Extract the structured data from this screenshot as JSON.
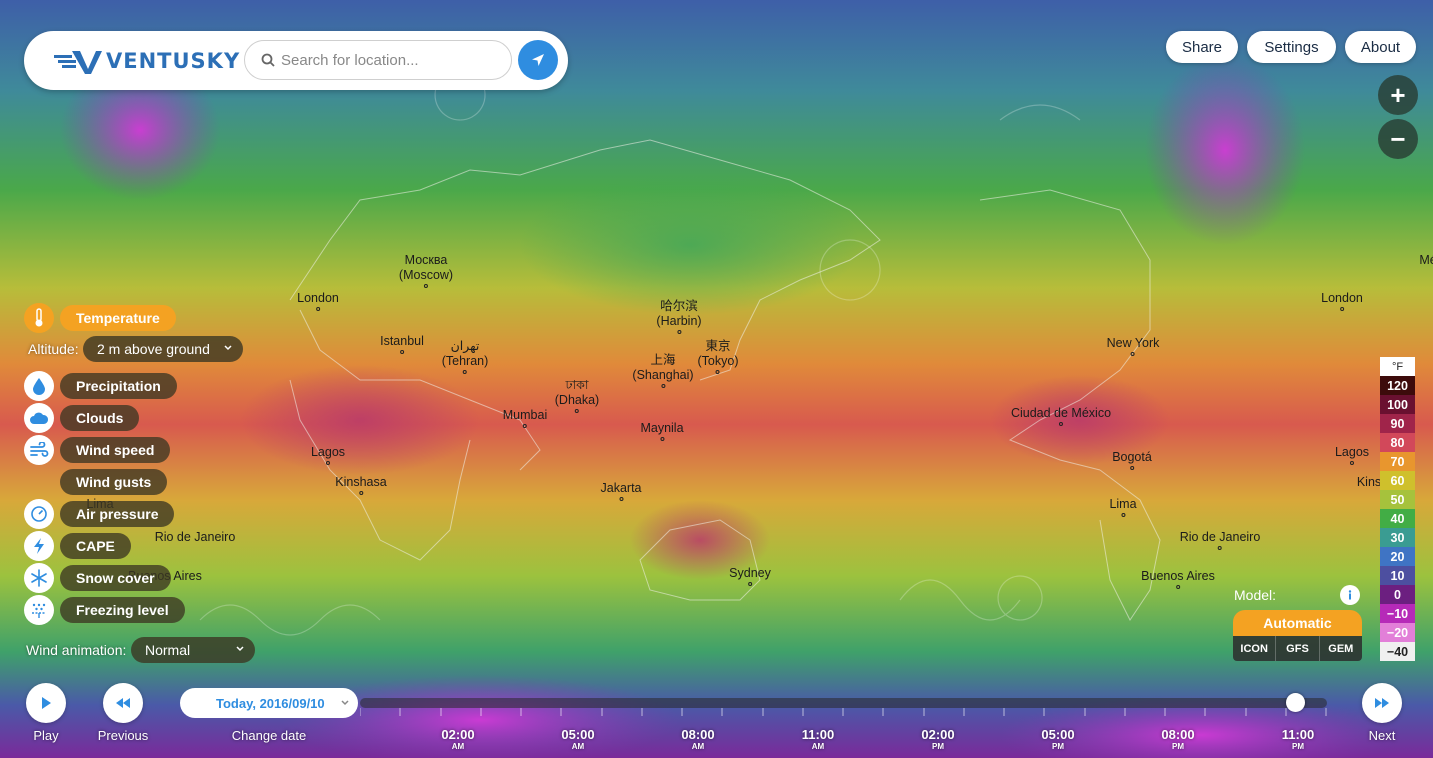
{
  "brand": {
    "name": "VENTUSKY",
    "accent": "#2f8de0",
    "logo_color": "#2c6fb6"
  },
  "search": {
    "placeholder": "Search for location..."
  },
  "top_buttons": {
    "share": "Share",
    "settings": "Settings",
    "about": "About"
  },
  "zoom": {
    "in": "+",
    "out": "−"
  },
  "cities": [
    {
      "name": "Москва",
      "sub": "(Moscow)"
    },
    {
      "name": "London",
      "sub": ""
    },
    {
      "name": "Istanbul",
      "sub": ""
    },
    {
      "name": "تهران",
      "sub": "(Tehran)"
    },
    {
      "name": "哈尔滨",
      "sub": "(Harbin)"
    },
    {
      "name": "上海",
      "sub": "(Shanghai)"
    },
    {
      "name": "東京",
      "sub": "(Tokyo)"
    },
    {
      "name": "ঢাকা",
      "sub": "(Dhaka)"
    },
    {
      "name": "Mumbai",
      "sub": ""
    },
    {
      "name": "Maynila",
      "sub": ""
    },
    {
      "name": "Lagos",
      "sub": ""
    },
    {
      "name": "Kinshasa",
      "sub": ""
    },
    {
      "name": "Jakarta",
      "sub": ""
    },
    {
      "name": "Sydney",
      "sub": ""
    },
    {
      "name": "Rio de Janeiro",
      "sub": ""
    },
    {
      "name": "Buenos Aires",
      "sub": ""
    },
    {
      "name": "Lima",
      "sub": ""
    },
    {
      "name": "Bogotá",
      "sub": ""
    },
    {
      "name": "Ciudad de México",
      "sub": ""
    },
    {
      "name": "New York",
      "sub": ""
    },
    {
      "name": "London",
      "sub": ""
    },
    {
      "name": "Lagos",
      "sub": ""
    },
    {
      "name": "Rio de Janeiro",
      "sub": ""
    },
    {
      "name": "Buenos Aires",
      "sub": ""
    },
    {
      "name": "Lima",
      "sub": ""
    },
    {
      "name": "Kins",
      "sub": ""
    },
    {
      "name": "Mé",
      "sub": ""
    }
  ],
  "layers": {
    "temperature": "Temperature",
    "altitude_label": "Altitude:",
    "altitude_value": "2 m above ground",
    "precipitation": "Precipitation",
    "clouds": "Clouds",
    "wind_speed": "Wind speed",
    "wind_gusts": "Wind gusts",
    "air_pressure": "Air pressure",
    "cape": "CAPE",
    "snow_cover": "Snow cover",
    "freezing_level": "Freezing level",
    "wind_animation_label": "Wind animation:",
    "wind_animation_value": "Normal",
    "active_color": "#f4a222"
  },
  "legend": {
    "unit": "°F",
    "entries": [
      {
        "label": "120",
        "color": "#3d0b0b"
      },
      {
        "label": "100",
        "color": "#6a1030"
      },
      {
        "label": "90",
        "color": "#a0244a"
      },
      {
        "label": "80",
        "color": "#d2485a"
      },
      {
        "label": "70",
        "color": "#e8962e"
      },
      {
        "label": "60",
        "color": "#cfc02c"
      },
      {
        "label": "50",
        "color": "#a6c23c"
      },
      {
        "label": "40",
        "color": "#42ad45"
      },
      {
        "label": "30",
        "color": "#3a9c92"
      },
      {
        "label": "20",
        "color": "#3f74c4"
      },
      {
        "label": "10",
        "color": "#4d4fa0"
      },
      {
        "label": "0",
        "color": "#6c1f80"
      },
      {
        "label": "−10",
        "color": "#b62ab8"
      },
      {
        "label": "−20",
        "color": "#e27fd8"
      },
      {
        "label": "−40",
        "color": "#f0f0f0"
      }
    ]
  },
  "model": {
    "label": "Model:",
    "selected": "Automatic",
    "options": [
      "ICON",
      "GFS",
      "GEM"
    ]
  },
  "timeline": {
    "play": "Play",
    "previous": "Previous",
    "change_date": "Change date",
    "next": "Next",
    "date": "Today, 2016/09/10",
    "times": [
      {
        "t": "02:00",
        "ap": "AM"
      },
      {
        "t": "05:00",
        "ap": "AM"
      },
      {
        "t": "08:00",
        "ap": "AM"
      },
      {
        "t": "11:00",
        "ap": "AM"
      },
      {
        "t": "02:00",
        "ap": "PM"
      },
      {
        "t": "05:00",
        "ap": "PM"
      },
      {
        "t": "08:00",
        "ap": "PM"
      },
      {
        "t": "11:00",
        "ap": "PM"
      }
    ],
    "current_fraction": 0.967
  }
}
